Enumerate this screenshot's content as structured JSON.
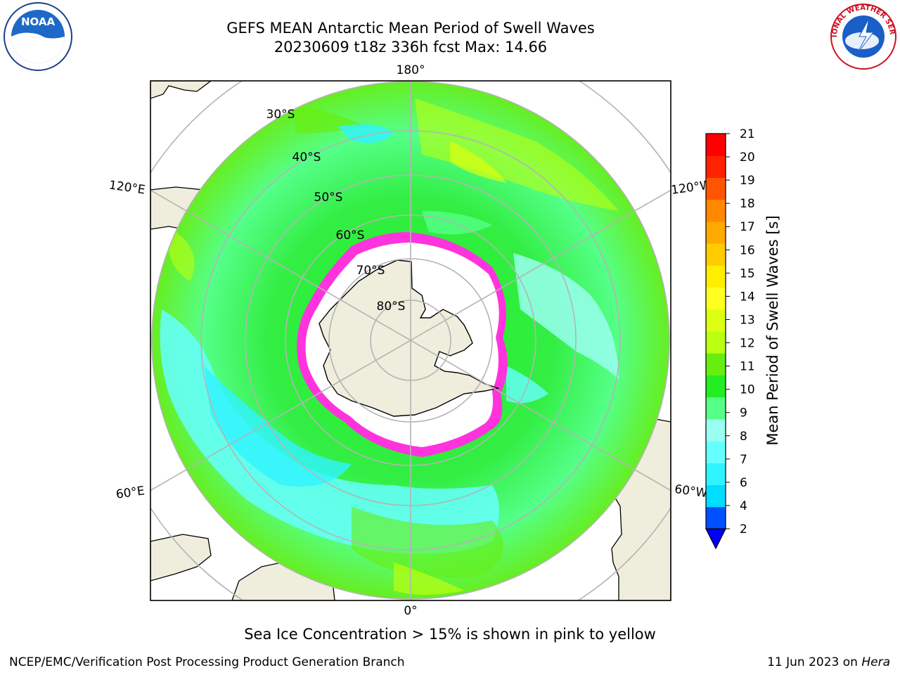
{
  "title_line1": "GEFS MEAN Antarctic Mean Period of Swell Waves",
  "title_line2": "20230609 t18z 336h fcst   Max: 14.66",
  "caption": "Sea Ice Concentration > 15% is shown in pink to yellow",
  "footer_left": "NCEP/EMC/Verification Post Processing Product Generation Branch",
  "footer_right_date": "11 Jun 2023 on",
  "footer_right_host": "Hera",
  "map": {
    "projection": "South Polar Stereographic",
    "longitude_labels": {
      "top": "180°",
      "bottom": "0°",
      "upper_left": "120°E",
      "lower_left": "60°E",
      "upper_right": "120°W",
      "lower_right": "60°W"
    },
    "latitude_labels": [
      "30°S",
      "40°S",
      "50°S",
      "60°S",
      "70°S",
      "80°S"
    ]
  },
  "colorbar": {
    "label": "Mean Period of Swell Waves [s]",
    "ticks": [
      "2",
      "4",
      "6",
      "7",
      "8",
      "9",
      "10",
      "11",
      "12",
      "13",
      "14",
      "15",
      "16",
      "17",
      "18",
      "19",
      "20",
      "21"
    ],
    "colors": [
      "#0050ff",
      "#00ddff",
      "#2ff4ff",
      "#66ffff",
      "#99fff0",
      "#55ff88",
      "#22ee22",
      "#66ee11",
      "#bbff11",
      "#ddff11",
      "#ffff22",
      "#ffee00",
      "#ffcc00",
      "#ffaa00",
      "#ff8800",
      "#ff5500",
      "#ff2200",
      "#ff0000"
    ],
    "under_color": "#0000ff"
  },
  "colors": {
    "land": "#efeddc",
    "ice_edge": "#ff33dd",
    "graticule": "#b4b4b4"
  },
  "logos": {
    "noaa": "NOAA",
    "nws": "NATIONAL WEATHER SERVICE"
  }
}
